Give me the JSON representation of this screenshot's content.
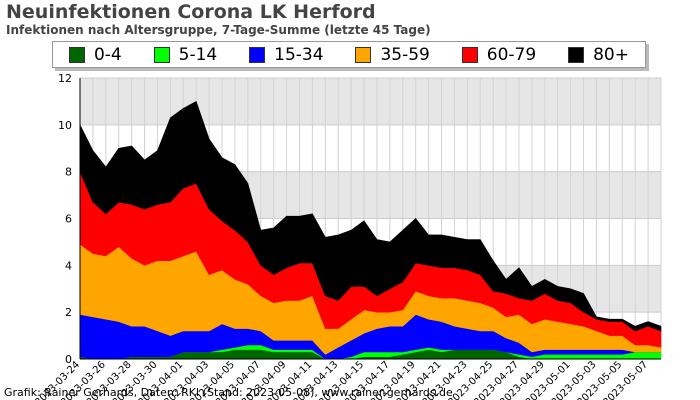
{
  "header": {
    "title": "Neuinfektionen Corona LK Herford",
    "subtitle": "Infektionen nach Altersgruppe, 7-Tage-Summe (letzte 45 Tage)"
  },
  "footer": {
    "credit": "Grafik: Rainer Gerhards, Daten: RKI (Stand: 2023-05-08), www.rainer-gerhards.de"
  },
  "chart_data": {
    "type": "area",
    "stacked": true,
    "title": "Neuinfektionen Corona LK Herford",
    "subtitle": "Infektionen nach Altersgruppe, 7-Tage-Summe (letzte 45 Tage)",
    "ylim": [
      0,
      12
    ],
    "yticks": [
      0,
      2,
      4,
      6,
      8,
      10,
      12
    ],
    "grid": true,
    "legend_position": "top",
    "x": [
      "2023-03-24",
      "2023-03-25",
      "2023-03-26",
      "2023-03-27",
      "2023-03-28",
      "2023-03-29",
      "2023-03-30",
      "2023-03-31",
      "2023-04-01",
      "2023-04-02",
      "2023-04-03",
      "2023-04-04",
      "2023-04-05",
      "2023-04-06",
      "2023-04-07",
      "2023-04-08",
      "2023-04-09",
      "2023-04-10",
      "2023-04-11",
      "2023-04-12",
      "2023-04-13",
      "2023-04-14",
      "2023-04-15",
      "2023-04-16",
      "2023-04-17",
      "2023-04-18",
      "2023-04-19",
      "2023-04-20",
      "2023-04-21",
      "2023-04-22",
      "2023-04-23",
      "2023-04-24",
      "2023-04-25",
      "2023-04-26",
      "2023-04-27",
      "2023-04-28",
      "2023-04-29",
      "2023-04-30",
      "2023-05-01",
      "2023-05-02",
      "2023-05-03",
      "2023-05-04",
      "2023-05-05",
      "2023-05-06",
      "2023-05-07",
      "2023-05-08"
    ],
    "x_tick_labels": [
      "2023-03-24",
      "2023-03-26",
      "2023-03-28",
      "2023-03-30",
      "2023-04-01",
      "2023-04-03",
      "2023-04-05",
      "2023-04-07",
      "2023-04-09",
      "2023-04-11",
      "2023-04-13",
      "2023-04-15",
      "2023-04-17",
      "2023-04-19",
      "2023-04-21",
      "2023-04-23",
      "2023-04-25",
      "2023-04-27",
      "2023-04-29",
      "2023-05-01",
      "2023-05-03",
      "2023-05-05",
      "2023-05-07"
    ],
    "series": [
      {
        "name": "0-4",
        "color": "#006600",
        "values": [
          0.1,
          0,
          0,
          0,
          0.1,
          0.1,
          0.1,
          0.1,
          0.3,
          0.3,
          0.3,
          0.3,
          0.4,
          0.4,
          0.4,
          0.3,
          0.3,
          0.3,
          0.3,
          0,
          0,
          0,
          0.1,
          0.1,
          0.1,
          0.2,
          0.3,
          0.4,
          0.3,
          0.4,
          0.4,
          0.4,
          0.4,
          0.3,
          0.1,
          0,
          0,
          0,
          0,
          0,
          0,
          0,
          0,
          0,
          0,
          0
        ]
      },
      {
        "name": "5-14",
        "color": "#00ff00",
        "values": [
          0,
          0,
          0,
          0,
          0,
          0,
          0,
          0,
          0,
          0,
          0,
          0.1,
          0.1,
          0.2,
          0.2,
          0.1,
          0.1,
          0.1,
          0.1,
          0,
          0,
          0.1,
          0.2,
          0.2,
          0.2,
          0.1,
          0.1,
          0.1,
          0.1,
          0,
          0,
          0,
          0,
          0,
          0.1,
          0.1,
          0.2,
          0.2,
          0.2,
          0.2,
          0.2,
          0.2,
          0.2,
          0.3,
          0.3,
          0.3
        ]
      },
      {
        "name": "15-34",
        "color": "#0000ff",
        "values": [
          1.8,
          1.8,
          1.7,
          1.6,
          1.3,
          1.3,
          1.1,
          0.9,
          0.9,
          0.9,
          0.9,
          1.1,
          0.8,
          0.7,
          0.6,
          0.4,
          0.4,
          0.4,
          0.4,
          0.2,
          0.5,
          0.7,
          0.8,
          1.0,
          1.1,
          1.1,
          1.5,
          1.2,
          1.2,
          1.0,
          0.9,
          0.8,
          0.8,
          0.6,
          0.5,
          0.2,
          0.2,
          0.2,
          0.2,
          0.2,
          0.2,
          0.2,
          0.2,
          0,
          0,
          0
        ]
      },
      {
        "name": "35-59",
        "color": "#ffa500",
        "values": [
          3,
          2.7,
          2.7,
          3.2,
          2.9,
          2.6,
          3,
          3.2,
          3.2,
          3.4,
          2.4,
          2.3,
          2.1,
          1.9,
          1.5,
          1.6,
          1.7,
          1.7,
          1.9,
          1.1,
          0.8,
          0.9,
          1,
          0.7,
          0.6,
          0.7,
          1,
          1,
          1,
          1.2,
          1.2,
          1.2,
          1,
          0.9,
          1.2,
          1.2,
          1.3,
          1.2,
          1.1,
          1.0,
          0.8,
          0.6,
          0.6,
          0.3,
          0.3,
          0.2
        ]
      },
      {
        "name": "60-79",
        "color": "#ff0000",
        "values": [
          3.1,
          2.2,
          1.8,
          1.9,
          2.3,
          2.4,
          2.4,
          2.5,
          2.9,
          2.9,
          2.8,
          2.1,
          2.1,
          1.8,
          1.3,
          1.2,
          1.4,
          1.6,
          1.4,
          1.4,
          1.2,
          1.4,
          1.0,
          0.7,
          1.0,
          1.2,
          1.2,
          1.3,
          1.3,
          1.3,
          1.3,
          1.2,
          0.7,
          1.0,
          0.7,
          1.0,
          1.1,
          0.9,
          0.9,
          0.6,
          0.5,
          0.6,
          0.6,
          0.6,
          0.8,
          0.7
        ]
      },
      {
        "name": "80+",
        "color": "#000000",
        "values": [
          2,
          2.2,
          2,
          2.3,
          2.5,
          2.1,
          2.3,
          3.6,
          3.4,
          3.5,
          3,
          2.7,
          2.8,
          2.5,
          1.5,
          2,
          2.2,
          2,
          2.1,
          2.5,
          2.8,
          2.4,
          2.8,
          2.4,
          2,
          2.2,
          1.9,
          1.3,
          1.4,
          1.3,
          1.3,
          1.5,
          1.3,
          0.6,
          1.3,
          0.6,
          0.6,
          0.6,
          0.6,
          0.8,
          0.1,
          0.1,
          0.1,
          0.2,
          0.2,
          0.2
        ]
      }
    ]
  }
}
